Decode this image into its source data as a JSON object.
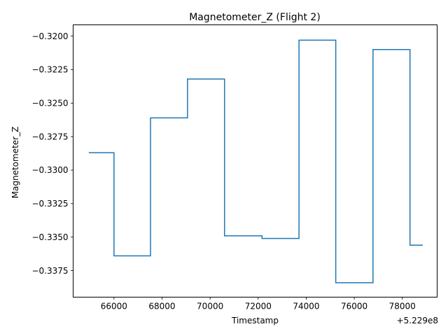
{
  "chart_data": {
    "type": "line",
    "title": "Magnetometer_Z (Flight 2)",
    "xlabel": "Timestamp",
    "ylabel": "Magnetometer_Z",
    "x_offset_label": "+5.229e8",
    "xlim": [
      64300,
      79450
    ],
    "ylim": [
      -0.33948,
      -0.31916
    ],
    "x_ticks": [
      66000,
      68000,
      70000,
      72000,
      74000,
      76000,
      78000
    ],
    "x_tick_labels": [
      "66000",
      "68000",
      "70000",
      "72000",
      "74000",
      "76000",
      "78000"
    ],
    "y_ticks": [
      -0.32,
      -0.3225,
      -0.325,
      -0.3275,
      -0.33,
      -0.3325,
      -0.335,
      -0.3375
    ],
    "y_tick_labels": [
      "−0.3200",
      "−0.3225",
      "−0.3250",
      "−0.3275",
      "−0.3300",
      "−0.3325",
      "−0.3350",
      "−0.3375"
    ],
    "grid": false,
    "legend": "none",
    "series": [
      {
        "color": "#1f77b4",
        "step": true,
        "x": [
          64950,
          66000,
          66000,
          67520,
          67520,
          69060,
          69060,
          70600,
          70600,
          72160,
          72160,
          73700,
          73700,
          75230,
          75230,
          76780,
          76780,
          78320,
          78320,
          78850
        ],
        "y": [
          -0.3287,
          -0.3287,
          -0.3364,
          -0.3364,
          -0.3261,
          -0.3261,
          -0.3232,
          -0.3232,
          -0.3349,
          -0.3349,
          -0.3351,
          -0.3351,
          -0.3203,
          -0.3203,
          -0.3384,
          -0.3384,
          -0.321,
          -0.321,
          -0.3356,
          -0.3356
        ]
      }
    ]
  }
}
